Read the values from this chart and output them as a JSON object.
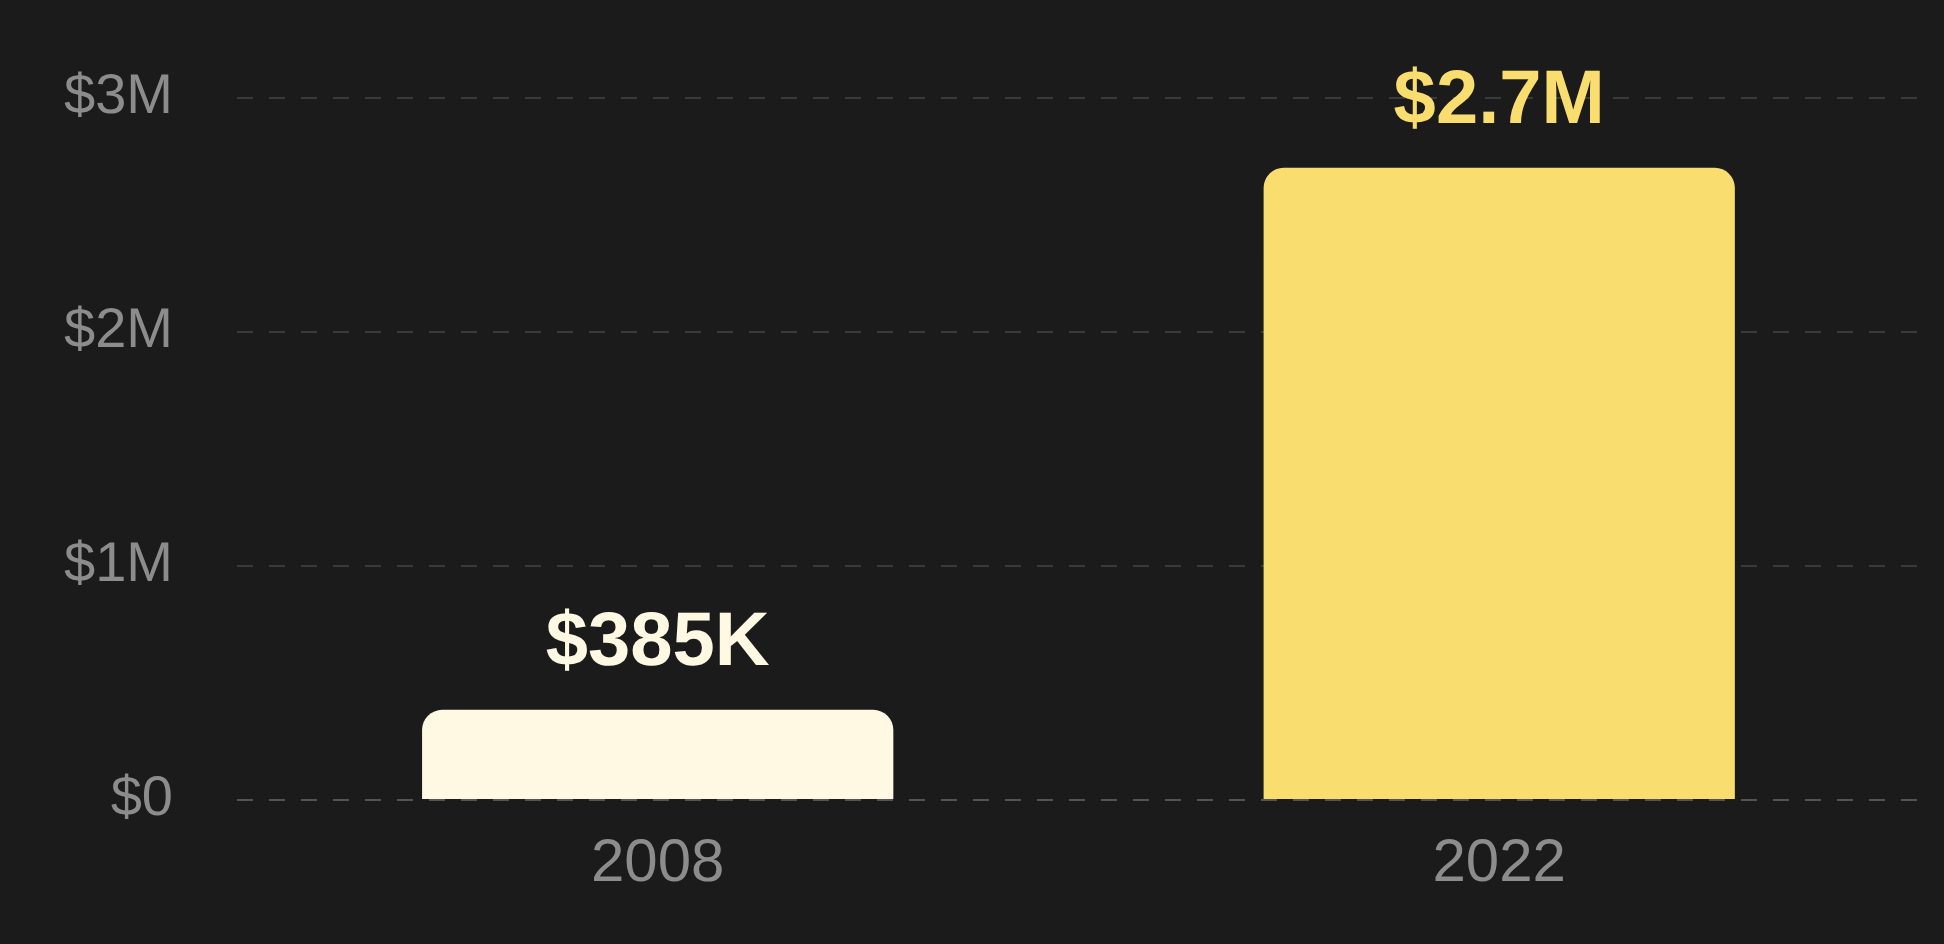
{
  "chart_data": {
    "type": "bar",
    "categories": [
      "2008",
      "2022"
    ],
    "values": [
      385000,
      2700000
    ],
    "colors": [
      "#fff8e3",
      "#f9dd6f"
    ],
    "value_labels": [
      "$385K",
      "$2.7M"
    ],
    "ylim": [
      0,
      3000000
    ],
    "yticks": [
      {
        "value": 0,
        "label": "$0"
      },
      {
        "value": 1000000,
        "label": "$1M"
      },
      {
        "value": 2000000,
        "label": "$2M"
      },
      {
        "value": 3000000,
        "label": "$3M"
      }
    ],
    "grid": "y",
    "legend": false
  }
}
